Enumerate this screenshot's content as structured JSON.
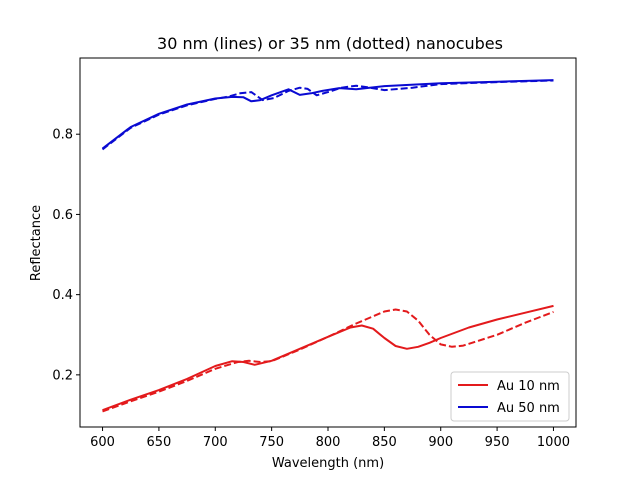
{
  "chart_data": {
    "type": "line",
    "title": "30 nm (lines) or 35 nm (dotted) nanocubes",
    "xlabel": "Wavelength (nm)",
    "ylabel": "Reflectance",
    "xlim": [
      580,
      1020
    ],
    "ylim": [
      0.07,
      0.99
    ],
    "xticks": [
      600,
      650,
      700,
      750,
      800,
      850,
      900,
      950,
      1000
    ],
    "xtick_labels": [
      "600",
      "650",
      "700",
      "750",
      "800",
      "850",
      "900",
      "950",
      "1000"
    ],
    "yticks": [
      0.2,
      0.4,
      0.6,
      0.8
    ],
    "ytick_labels": [
      "0.2",
      "0.4",
      "0.6",
      "0.8"
    ],
    "grid": false,
    "legend_position": "lower-right",
    "legend": [
      {
        "label": "Au 10 nm",
        "color": "#e31a1c"
      },
      {
        "label": "Au 50 nm",
        "color": "#0a0ad2"
      }
    ],
    "series": [
      {
        "color": "#e31a1c",
        "dash": "solid",
        "x": [
          600,
          625,
          650,
          675,
          700,
          715,
          725,
          735,
          750,
          775,
          800,
          820,
          830,
          840,
          850,
          860,
          870,
          880,
          890,
          900,
          925,
          950,
          975,
          1000
        ],
        "y": [
          0.112,
          0.138,
          0.162,
          0.19,
          0.222,
          0.234,
          0.232,
          0.225,
          0.235,
          0.265,
          0.295,
          0.318,
          0.323,
          0.315,
          0.292,
          0.272,
          0.265,
          0.27,
          0.28,
          0.292,
          0.318,
          0.338,
          0.355,
          0.372
        ]
      },
      {
        "color": "#e31a1c",
        "dash": "dashed",
        "x": [
          600,
          625,
          650,
          675,
          700,
          720,
          730,
          740,
          750,
          775,
          800,
          825,
          850,
          860,
          870,
          880,
          890,
          900,
          910,
          920,
          950,
          975,
          1000
        ],
        "y": [
          0.109,
          0.134,
          0.158,
          0.185,
          0.215,
          0.232,
          0.235,
          0.232,
          0.234,
          0.263,
          0.295,
          0.328,
          0.358,
          0.363,
          0.358,
          0.335,
          0.3,
          0.276,
          0.27,
          0.273,
          0.3,
          0.33,
          0.357
        ]
      },
      {
        "color": "#0a0ad2",
        "dash": "solid",
        "x": [
          600,
          625,
          650,
          675,
          700,
          715,
          725,
          732,
          740,
          750,
          765,
          775,
          785,
          795,
          810,
          825,
          850,
          900,
          950,
          1000
        ],
        "y": [
          0.764,
          0.818,
          0.851,
          0.874,
          0.889,
          0.893,
          0.892,
          0.882,
          0.885,
          0.897,
          0.912,
          0.898,
          0.902,
          0.908,
          0.915,
          0.912,
          0.92,
          0.927,
          0.931,
          0.935
        ]
      },
      {
        "color": "#0a0ad2",
        "dash": "dashed",
        "x": [
          600,
          625,
          650,
          675,
          700,
          712,
          722,
          732,
          742,
          752,
          765,
          775,
          782,
          790,
          800,
          812,
          825,
          835,
          850,
          875,
          900,
          950,
          1000
        ],
        "y": [
          0.762,
          0.816,
          0.849,
          0.872,
          0.888,
          0.894,
          0.902,
          0.905,
          0.885,
          0.89,
          0.908,
          0.916,
          0.913,
          0.897,
          0.905,
          0.916,
          0.921,
          0.917,
          0.91,
          0.916,
          0.925,
          0.93,
          0.934
        ]
      }
    ]
  }
}
